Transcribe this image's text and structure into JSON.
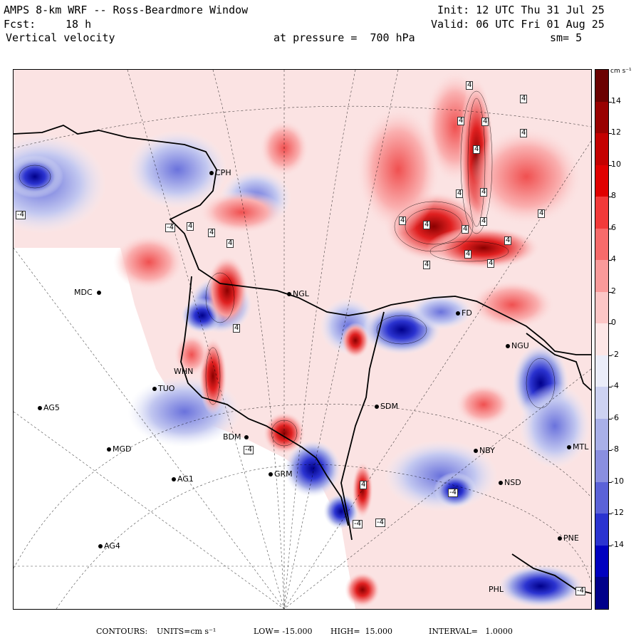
{
  "header": {
    "line1_left": "AMPS 8-km WRF -- Ross-Beardmore Window",
    "line1_right": "Init: 12 UTC Thu 31 Jul 25",
    "line2_left_label": "Fcst:",
    "line2_left_value": "18 h",
    "line2_right": "Valid: 06 UTC Fri 01 Aug 25",
    "line3_left": "Vertical velocity",
    "line3_mid": "at pressure =  700 hPa",
    "line3_right": "sm= 5"
  },
  "colorbar": {
    "units": "cm s⁻¹",
    "levels": [
      "14",
      "12",
      "10",
      "8",
      "6",
      "4",
      "2",
      "0",
      "-2",
      "-4",
      "-6",
      "-8",
      "-10",
      "-12",
      "-14"
    ],
    "colors": [
      "#6b0000",
      "#990000",
      "#c40000",
      "#e00000",
      "#f23a3a",
      "#f76a6a",
      "#fa9a9a",
      "#fcc6c6",
      "#fde6e6",
      "#ebedf9",
      "#cdd2f2",
      "#a9b0e8",
      "#8a8fe0",
      "#5b62d8",
      "#2b33d0",
      "#0000c0",
      "#00008a"
    ]
  },
  "stations": [
    {
      "name": "CPH"
    },
    {
      "name": "MDC"
    },
    {
      "name": "NGL"
    },
    {
      "name": "FD"
    },
    {
      "name": "NGU"
    },
    {
      "name": "WHN"
    },
    {
      "name": "TUO"
    },
    {
      "name": "AG5"
    },
    {
      "name": "SDM"
    },
    {
      "name": "MGD"
    },
    {
      "name": "BDM"
    },
    {
      "name": "GRM"
    },
    {
      "name": "AG1"
    },
    {
      "name": "NBY"
    },
    {
      "name": "NSD"
    },
    {
      "name": "AG4"
    },
    {
      "name": "PNE"
    },
    {
      "name": "PHL"
    },
    {
      "name": "MTL"
    }
  ],
  "contour_labels": [
    "4",
    "4",
    "4",
    "4",
    "4",
    "4",
    "4",
    "4",
    "4",
    "4",
    "4",
    "4",
    "4",
    "4",
    "4",
    "4",
    "4",
    "4",
    "4",
    "4",
    "4",
    "4",
    "-4",
    "-4",
    "-4",
    "-4",
    "-4",
    "-4",
    "-4"
  ],
  "footer": {
    "contours_label": "CONTOURS:",
    "units_text": "UNITS=cm s⁻¹",
    "low_text": "LOW= -15.000",
    "high_text": "HIGH=  15.000",
    "interval_text": "INTERVAL=   1.0000"
  }
}
